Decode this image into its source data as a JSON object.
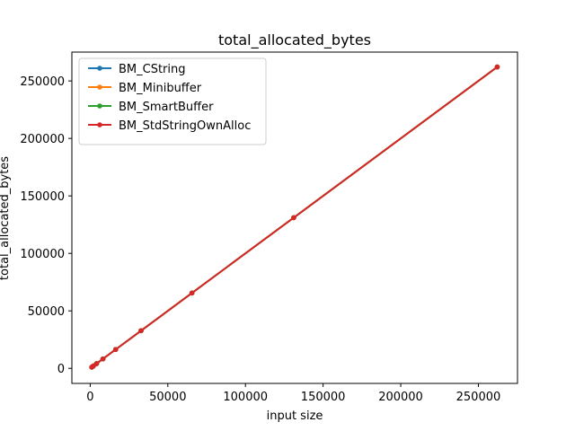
{
  "chart_data": {
    "type": "line",
    "title": "total_allocated_bytes",
    "xlabel": "input size",
    "ylabel": "total_allocated_bytes",
    "xlim": [
      -11800,
      275200
    ],
    "ylim": [
      -13100,
      275100
    ],
    "xticks": [
      0,
      50000,
      100000,
      150000,
      200000,
      250000
    ],
    "xtick_labels": [
      "0",
      "50000",
      "100000",
      "150000",
      "200000",
      "250000"
    ],
    "yticks": [
      0,
      50000,
      100000,
      150000,
      200000,
      250000
    ],
    "ytick_labels": [
      "0",
      "50000",
      "100000",
      "150000",
      "200000",
      "250000"
    ],
    "grid": false,
    "legend_position": "upper-left",
    "x": [
      1024,
      2048,
      4096,
      8192,
      16384,
      32768,
      65536,
      131072,
      262144
    ],
    "series": [
      {
        "name": "BM_CString",
        "color": "#1f77b4",
        "values": [
          1024,
          2048,
          4096,
          8192,
          16384,
          32768,
          65536,
          131072,
          262144
        ]
      },
      {
        "name": "BM_Minibuffer",
        "color": "#ff7f0e",
        "values": [
          1024,
          2048,
          4096,
          8192,
          16384,
          32768,
          65536,
          131072,
          262144
        ]
      },
      {
        "name": "BM_SmartBuffer",
        "color": "#2ca02c",
        "values": [
          1024,
          2048,
          4096,
          8192,
          16384,
          32768,
          65536,
          131072,
          262144
        ]
      },
      {
        "name": "BM_StdStringOwnAlloc",
        "color": "#d62728",
        "values": [
          1024,
          2048,
          4096,
          8192,
          16384,
          32768,
          65536,
          131072,
          262144
        ]
      }
    ]
  }
}
